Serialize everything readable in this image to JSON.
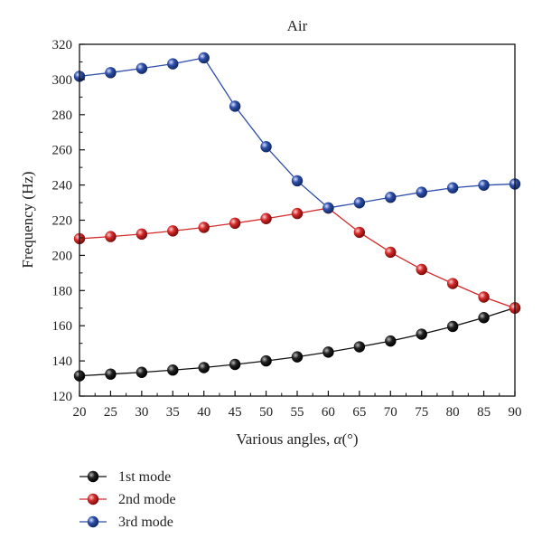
{
  "chart_data": {
    "type": "line",
    "title": "Air",
    "xlabel_text": "Various angles, ",
    "xlabel_symbol": "α",
    "xlabel_unit": "(°)",
    "ylabel": "Frequency (Hz)",
    "xlim": [
      20,
      90
    ],
    "ylim": [
      120,
      320
    ],
    "xticks": [
      "20",
      "25",
      "30",
      "35",
      "40",
      "45",
      "50",
      "55",
      "60",
      "65",
      "70",
      "75",
      "80",
      "85",
      "90"
    ],
    "yticks": [
      "120",
      "140",
      "160",
      "180",
      "200",
      "220",
      "240",
      "260",
      "280",
      "300",
      "320"
    ],
    "x": [
      20,
      25,
      30,
      35,
      40,
      45,
      50,
      55,
      60,
      65,
      70,
      75,
      80,
      85,
      90
    ],
    "series": [
      {
        "name": "1st mode",
        "color": "#111111",
        "values": [
          131.5,
          132.5,
          133.5,
          134.8,
          136.2,
          138,
          140,
          142.3,
          145,
          148,
          151.3,
          155.2,
          159.6,
          164.6,
          170.2
        ]
      },
      {
        "name": "2nd mode",
        "color": "#d42a2a",
        "values": [
          209.5,
          210.7,
          212.1,
          213.9,
          215.9,
          218.3,
          220.9,
          223.8,
          226.9,
          213.1,
          201.8,
          192,
          184,
          176.3,
          170
        ]
      },
      {
        "name": "3rd mode",
        "color": "#2e4ea8",
        "values": [
          301.8,
          303.9,
          306.3,
          308.9,
          312.3,
          284.8,
          261.8,
          242.4,
          227,
          229.9,
          233,
          235.9,
          238.4,
          239.9,
          240.6
        ]
      }
    ],
    "grid": false,
    "legend_position": "bottom-left"
  }
}
